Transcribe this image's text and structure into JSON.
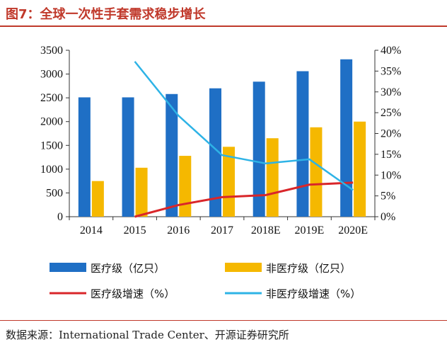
{
  "header": {
    "title": "图7：全球一次性手套需求稳步增长"
  },
  "footer": {
    "source": "数据来源：International Trade Center、开源证券研究所"
  },
  "colors": {
    "medical_bar": "#1f6fc5",
    "nonmedical_bar": "#f5b800",
    "medical_line": "#d9262a",
    "nonmedical_line": "#2eb3e6",
    "title_red": "#c0392b"
  },
  "chart_data": {
    "type": "bar",
    "title": "",
    "xlabel": "",
    "ylabel": "",
    "categories": [
      "2014",
      "2015",
      "2016",
      "2017",
      "2018E",
      "2019E",
      "2020E"
    ],
    "y_left": {
      "min": 0,
      "max": 3500,
      "ticks": [
        "0",
        "500",
        "1000",
        "1500",
        "2000",
        "2500",
        "3000",
        "3500"
      ]
    },
    "y_right": {
      "min": 0,
      "max": 40,
      "ticks": [
        "0%",
        "5%",
        "10%",
        "15%",
        "20%",
        "25%",
        "30%",
        "35%",
        "40%"
      ]
    },
    "series": [
      {
        "name": "医疗级（亿只）",
        "type": "bar",
        "axis": "left",
        "values": [
          2510,
          2510,
          2580,
          2700,
          2840,
          3060,
          3310
        ]
      },
      {
        "name": "非医疗级（亿只）",
        "type": "bar",
        "axis": "left",
        "values": [
          750,
          1030,
          1280,
          1470,
          1650,
          1880,
          2000
        ]
      },
      {
        "name": "医疗级增速（%）",
        "type": "line",
        "axis": "right",
        "values": [
          null,
          0.0,
          2.8,
          4.7,
          5.2,
          7.7,
          8.2
        ]
      },
      {
        "name": "非医疗级增速（%）",
        "type": "line",
        "axis": "right",
        "values": [
          null,
          37.3,
          24.3,
          14.8,
          12.8,
          13.8,
          6.4
        ]
      }
    ],
    "grid": false,
    "legend": "bottom"
  }
}
